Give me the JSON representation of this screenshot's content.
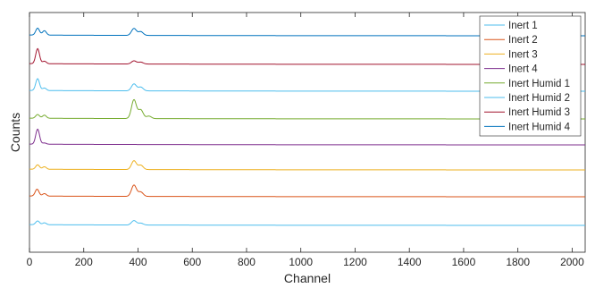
{
  "chart_data": {
    "type": "line",
    "xlabel": "Channel",
    "ylabel": "Counts",
    "xlim": [
      0,
      2048
    ],
    "x_ticks": [
      0,
      200,
      400,
      600,
      800,
      1000,
      1200,
      1400,
      1600,
      1800,
      2000
    ],
    "y_ticks_shown": false,
    "grid": false,
    "legend_position": "top-right",
    "stacked_with_offsets": true,
    "series_order_top_to_bottom": [
      "Inert Humid 4",
      "Inert 4",
      "Inert Humid 2",
      "Inert Humid 1",
      "Inert Humid 3",
      "Inert Humid 1 (lower)",
      "Inert 4 (lower)",
      "Inert 1"
    ],
    "series": [
      {
        "name": "Inert 1",
        "color": "#4DBEEE",
        "peaks": [
          {
            "channel": 30,
            "height": 0.3
          },
          {
            "channel": 55,
            "height": 0.15
          },
          {
            "channel": 385,
            "height": 0.35
          },
          {
            "channel": 410,
            "height": 0.15
          }
        ]
      },
      {
        "name": "Inert 2",
        "color": "#D95319",
        "peaks": [
          {
            "channel": 28,
            "height": 0.55
          },
          {
            "channel": 55,
            "height": 0.2
          },
          {
            "channel": 385,
            "height": 0.9
          },
          {
            "channel": 410,
            "height": 0.35
          }
        ]
      },
      {
        "name": "Inert 3",
        "color": "#EDB120",
        "peaks": [
          {
            "channel": 30,
            "height": 0.35
          },
          {
            "channel": 55,
            "height": 0.2
          },
          {
            "channel": 385,
            "height": 0.7
          },
          {
            "channel": 410,
            "height": 0.35
          }
        ]
      },
      {
        "name": "Inert 4",
        "color": "#7E2F8E",
        "peaks": [
          {
            "channel": 30,
            "height": 1.2
          },
          {
            "channel": 55,
            "height": 0.1
          }
        ]
      },
      {
        "name": "Inert Humid 1",
        "color": "#77AC30",
        "peaks": [
          {
            "channel": 30,
            "height": 0.3
          },
          {
            "channel": 55,
            "height": 0.25
          },
          {
            "channel": 385,
            "height": 1.5
          },
          {
            "channel": 410,
            "height": 0.7
          },
          {
            "channel": 440,
            "height": 0.2
          }
        ]
      },
      {
        "name": "Inert Humid 2",
        "color": "#4DBEEE",
        "peaks": [
          {
            "channel": 30,
            "height": 0.95
          },
          {
            "channel": 55,
            "height": 0.2
          },
          {
            "channel": 385,
            "height": 0.55
          },
          {
            "channel": 410,
            "height": 0.3
          }
        ]
      },
      {
        "name": "Inert Humid 3",
        "color": "#A2142F",
        "peaks": [
          {
            "channel": 30,
            "height": 1.2
          },
          {
            "channel": 55,
            "height": 0.2
          },
          {
            "channel": 385,
            "height": 0.25
          },
          {
            "channel": 410,
            "height": 0.15
          }
        ]
      },
      {
        "name": "Inert Humid 4",
        "color": "#0072BD",
        "peaks": [
          {
            "channel": 30,
            "height": 0.55
          },
          {
            "channel": 55,
            "height": 0.35
          },
          {
            "channel": 385,
            "height": 0.55
          },
          {
            "channel": 410,
            "height": 0.3
          }
        ]
      }
    ],
    "legend_entries": [
      "Inert 1",
      "Inert 2",
      "Inert 3",
      "Inert 4",
      "Inert Humid 1",
      "Inert Humid 2",
      "Inert Humid 3",
      "Inert Humid 4"
    ]
  }
}
